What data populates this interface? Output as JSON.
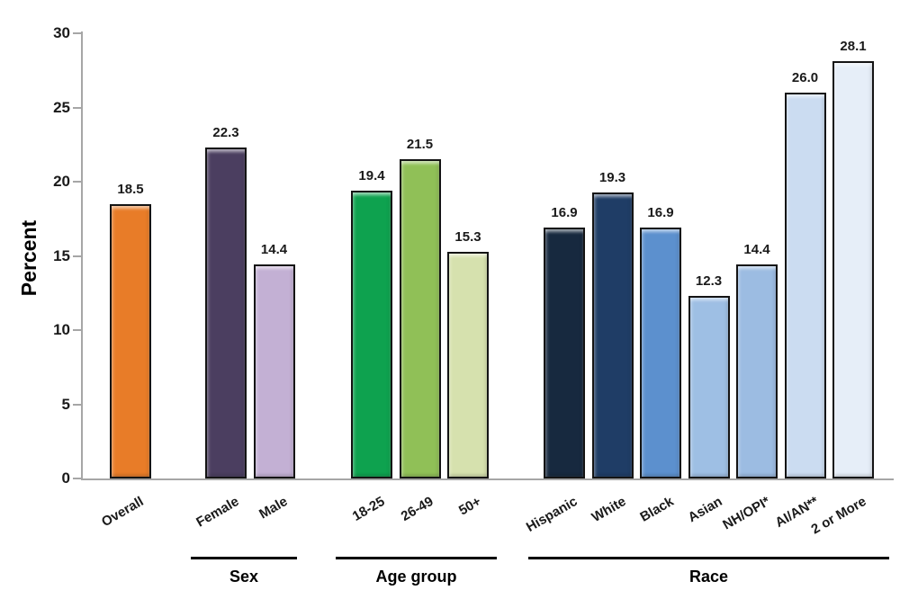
{
  "chart_data": {
    "type": "bar",
    "title": "",
    "ylabel": "Percent",
    "ylim": [
      0,
      30
    ],
    "yticks": [
      0,
      5,
      10,
      15,
      20,
      25,
      30
    ],
    "grid": false,
    "legend": false,
    "value_label_format": "one_decimal",
    "axis_color": "#a6a6a6",
    "bar_border_color": "#141414",
    "groups": [
      {
        "label": "",
        "bars": [
          {
            "category": "Overall",
            "value": 18.5,
            "color": "#E87C28"
          }
        ]
      },
      {
        "label": "Sex",
        "bars": [
          {
            "category": "Female",
            "value": 22.3,
            "color": "#4B3E60"
          },
          {
            "category": "Male",
            "value": 14.4,
            "color": "#C3B0D4"
          }
        ]
      },
      {
        "label": "Age group",
        "bars": [
          {
            "category": "18-25",
            "value": 19.4,
            "color": "#0EA24F"
          },
          {
            "category": "26-49",
            "value": 21.5,
            "color": "#90C057"
          },
          {
            "category": "50+",
            "value": 15.3,
            "color": "#D6E1AE"
          }
        ]
      },
      {
        "label": "Race",
        "bars": [
          {
            "category": "Hispanic",
            "value": 16.9,
            "color": "#17293F"
          },
          {
            "category": "White",
            "value": 19.3,
            "color": "#1F3D66"
          },
          {
            "category": "Black",
            "value": 16.9,
            "color": "#5C90CE"
          },
          {
            "category": "Asian",
            "value": 12.3,
            "color": "#9EBFE4"
          },
          {
            "category": "NH/OPI*",
            "value": 14.4,
            "color": "#9CBCE2"
          },
          {
            "category": "AI/AN**",
            "value": 26.0,
            "color": "#CBDCF1"
          },
          {
            "category": "2 or More",
            "value": 28.1,
            "color": "#E6EEF8"
          }
        ]
      }
    ]
  }
}
